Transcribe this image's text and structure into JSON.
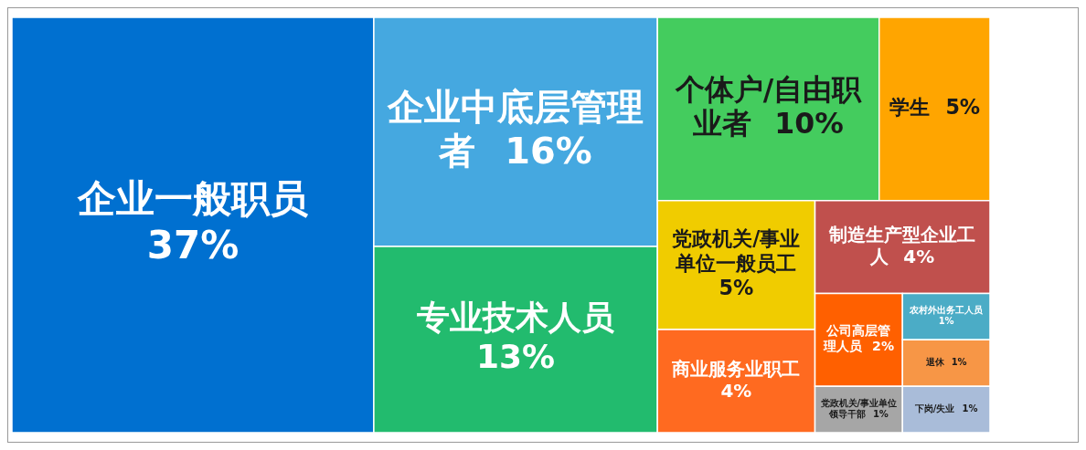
{
  "chart_data": {
    "type": "other",
    "categories": [
      "企业一般职员",
      "企业中底层管理者",
      "专业技术人员",
      "个体户/自由职业者",
      "学生",
      "党政机关/事业单位一般员工",
      "商业服务业职工",
      "制造生产型企业工人",
      "公司高层管理人员",
      "党政机关/事业单位领导干部",
      "农村外出务工人员",
      "退休",
      "下岗/失业"
    ],
    "values": [
      37,
      16,
      13,
      10,
      5,
      5,
      4,
      4,
      2,
      1,
      1,
      1,
      1
    ],
    "value_labels": [
      "37%",
      "16%",
      "13%",
      "10%",
      "5%",
      "5%",
      "4%",
      "4%",
      "2%",
      "1%",
      "1%",
      "1%",
      "1%"
    ],
    "colors": [
      "#0070d0",
      "#45a8e0",
      "#22bb6e",
      "#44cc5e",
      "#ffa500",
      "#f0cc00",
      "#ff6a20",
      "#c0504d",
      "#ff6000",
      "#a6a6a6",
      "#4bacc6",
      "#f79646",
      "#a9bcd9"
    ]
  }
}
